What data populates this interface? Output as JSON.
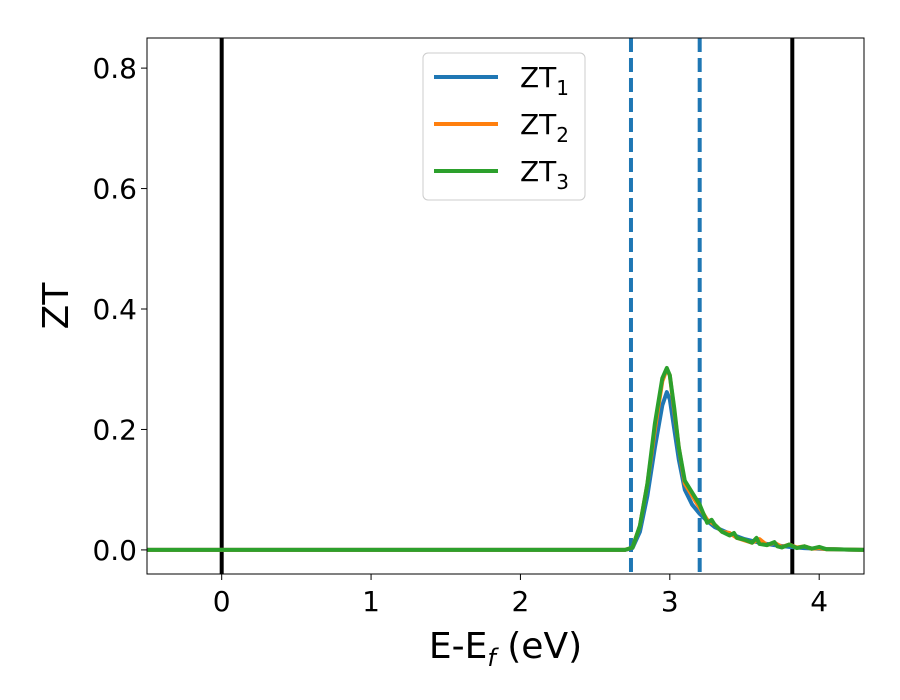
{
  "chart_data": {
    "type": "line",
    "xlabel": "E-E",
    "xlabel_sub": "f",
    "xlabel_unit": " (eV)",
    "ylabel": "ZT",
    "xlim": [
      -0.5,
      4.3
    ],
    "ylim": [
      -0.04,
      0.85
    ],
    "xticks": [
      0,
      1,
      2,
      3,
      4
    ],
    "xtick_labels": [
      "0",
      "1",
      "2",
      "3",
      "4"
    ],
    "yticks": [
      0.0,
      0.2,
      0.4,
      0.6,
      0.8
    ],
    "ytick_labels": [
      "0.0",
      "0.2",
      "0.4",
      "0.6",
      "0.8"
    ],
    "grid": false,
    "legend_position": "top-center",
    "vlines_solid": [
      0.0,
      3.82
    ],
    "vlines_dashed": [
      2.74,
      3.2
    ],
    "vline_solid_color": "#000000",
    "vline_dashed_color": "#1f77b4",
    "series": [
      {
        "name": "ZT",
        "name_sub": "1",
        "color": "#1f77b4",
        "x": [
          -0.5,
          0,
          1,
          2,
          2.7,
          2.75,
          2.8,
          2.85,
          2.9,
          2.95,
          2.98,
          3.0,
          3.03,
          3.06,
          3.1,
          3.15,
          3.2,
          3.25,
          3.3,
          3.4,
          3.5,
          3.6,
          3.7,
          3.8,
          3.9,
          4.0,
          4.1,
          4.2,
          4.3
        ],
        "y": [
          0,
          0,
          0,
          0,
          0,
          0.003,
          0.03,
          0.09,
          0.17,
          0.24,
          0.262,
          0.25,
          0.2,
          0.15,
          0.1,
          0.075,
          0.06,
          0.048,
          0.038,
          0.027,
          0.018,
          0.012,
          0.008,
          0.005,
          0.003,
          0.002,
          0.001,
          0.0005,
          0
        ]
      },
      {
        "name": "ZT",
        "name_sub": "2",
        "color": "#ff7f0e",
        "x": [
          -0.5,
          0,
          1,
          2,
          2.7,
          2.75,
          2.8,
          2.85,
          2.9,
          2.95,
          2.98,
          3.0,
          3.03,
          3.06,
          3.1,
          3.15,
          3.2,
          3.25,
          3.3,
          3.35,
          3.4,
          3.45,
          3.5,
          3.55,
          3.6,
          3.65,
          3.7,
          3.75,
          3.8,
          3.85,
          3.9,
          3.95,
          4.0,
          4.05,
          4.1,
          4.2,
          4.3
        ],
        "y": [
          0,
          0,
          0,
          0,
          0,
          0.004,
          0.04,
          0.11,
          0.2,
          0.28,
          0.3,
          0.29,
          0.23,
          0.17,
          0.11,
          0.09,
          0.07,
          0.05,
          0.042,
          0.03,
          0.028,
          0.02,
          0.016,
          0.012,
          0.018,
          0.008,
          0.012,
          0.005,
          0.009,
          0.004,
          0.006,
          0.002,
          0.003,
          0.001,
          0.001,
          0.0005,
          0
        ]
      },
      {
        "name": "ZT",
        "name_sub": "3",
        "color": "#2ca02c",
        "x": [
          -0.5,
          0,
          1,
          2,
          2.7,
          2.75,
          2.8,
          2.85,
          2.9,
          2.95,
          2.98,
          3.0,
          3.03,
          3.06,
          3.1,
          3.15,
          3.2,
          3.25,
          3.28,
          3.3,
          3.35,
          3.4,
          3.43,
          3.45,
          3.5,
          3.55,
          3.58,
          3.6,
          3.65,
          3.7,
          3.72,
          3.75,
          3.8,
          3.85,
          3.9,
          3.95,
          4.0,
          4.05,
          4.1,
          4.2,
          4.3
        ],
        "y": [
          0,
          0,
          0,
          0,
          0,
          0.004,
          0.04,
          0.11,
          0.21,
          0.285,
          0.302,
          0.29,
          0.235,
          0.17,
          0.115,
          0.095,
          0.075,
          0.045,
          0.05,
          0.042,
          0.03,
          0.024,
          0.028,
          0.02,
          0.017,
          0.012,
          0.02,
          0.01,
          0.008,
          0.013,
          0.006,
          0.004,
          0.009,
          0.003,
          0.006,
          0.002,
          0.005,
          0.001,
          0.001,
          0.0005,
          0
        ]
      }
    ]
  }
}
